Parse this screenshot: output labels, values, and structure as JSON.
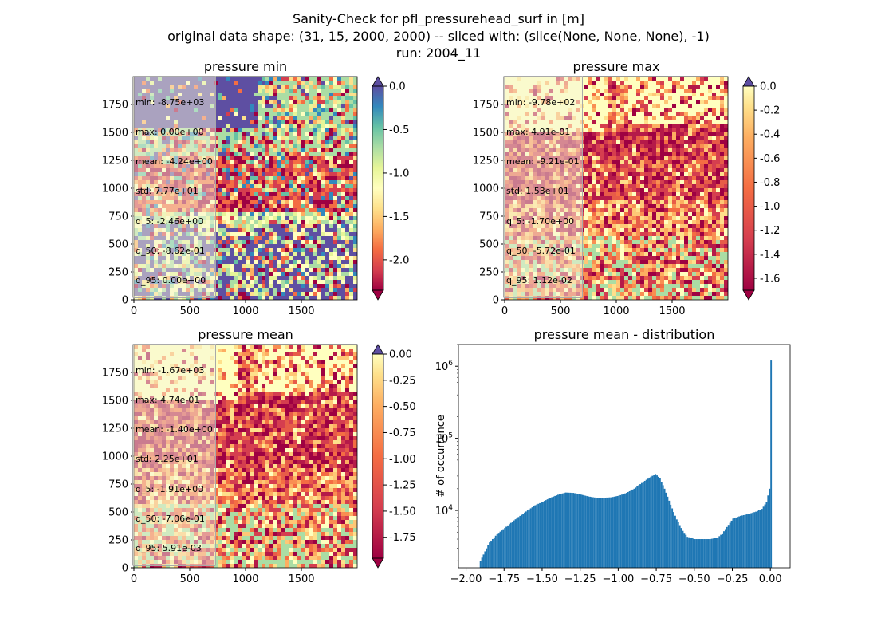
{
  "figure": {
    "title_lines": [
      "Sanity-Check for pfl_pressurehead_surf in [m]",
      "original data shape: (31, 15, 2000, 2000) -- sliced with: (slice(None, None, None), -1)",
      "run: 2004_11"
    ]
  },
  "panels": [
    {
      "id": "min",
      "title": "pressure min",
      "xticks": [
        "0",
        "500",
        "1000",
        "1500"
      ],
      "yticks": [
        "0",
        "250",
        "500",
        "750",
        "1000",
        "1250",
        "1500",
        "1750"
      ],
      "colorbar": {
        "ticks": [
          "0.0",
          "-0.5",
          "-1.0",
          "-1.5",
          "-2.0"
        ],
        "tick_values": [
          0.0,
          -0.5,
          -1.0,
          -1.5,
          -2.0
        ],
        "vmin": -2.35,
        "vmax": 0.0,
        "colormap": "Spectral",
        "extend": "both",
        "over_color": "#5e4fa2",
        "under_color": "#9e0142"
      },
      "stats": [
        "min: -8.75e+03",
        "max: 0.00e+00",
        "mean: -4.24e+00",
        "std: 7.77e+01",
        "q_5: -2.46e+00",
        "q_50: -8.62e-01",
        "q_95: 0.00e+00"
      ]
    },
    {
      "id": "max",
      "title": "pressure max",
      "xticks": [
        "0",
        "500",
        "1000",
        "1500"
      ],
      "yticks": [
        "0",
        "250",
        "500",
        "750",
        "1000",
        "1250",
        "1500",
        "1750"
      ],
      "colorbar": {
        "ticks": [
          "0.0",
          "-0.2",
          "-0.4",
          "-0.6",
          "-0.8",
          "-1.0",
          "-1.2",
          "-1.4",
          "-1.6"
        ],
        "tick_values": [
          0.0,
          -0.2,
          -0.4,
          -0.6,
          -0.8,
          -1.0,
          -1.2,
          -1.4,
          -1.6
        ],
        "vmin": -1.7,
        "vmax": 0.0,
        "colormap": "Spectral (lower half)",
        "extend": "both",
        "over_color": "#5e4fa2",
        "under_color": "#9e0142"
      },
      "stats": [
        "min: -9.78e+02",
        "max: 4.91e-01",
        "mean: -9.21e-01",
        "std: 1.53e+01",
        "q_5: -1.70e+00",
        "q_50: -5.72e-01",
        "q_95: 1.12e-02"
      ]
    },
    {
      "id": "mean",
      "title": "pressure mean",
      "xticks": [
        "0",
        "500",
        "1000",
        "1500"
      ],
      "yticks": [
        "0",
        "250",
        "500",
        "750",
        "1000",
        "1250",
        "1500",
        "1750"
      ],
      "colorbar": {
        "ticks": [
          "0.00",
          "-0.25",
          "-0.50",
          "-0.75",
          "-1.00",
          "-1.25",
          "-1.50",
          "-1.75"
        ],
        "tick_values": [
          0.0,
          -0.25,
          -0.5,
          -0.75,
          -1.0,
          -1.25,
          -1.5,
          -1.75
        ],
        "vmin": -1.95,
        "vmax": 0.0,
        "colormap": "Spectral (lower half)",
        "extend": "both",
        "over_color": "#5e4fa2",
        "under_color": "#9e0142"
      },
      "stats": [
        "min: -1.67e+03",
        "max: 4.74e-01",
        "mean: -1.40e+00",
        "std: 2.25e+01",
        "q_5: -1.91e+00",
        "q_50: -7.06e-01",
        "q_95: 5.91e-03"
      ]
    }
  ],
  "histogram": {
    "title": "pressure mean - distribution",
    "ylabel": "# of occurrence",
    "xticks": [
      "−2.00",
      "−1.75",
      "−1.50",
      "−1.25",
      "−1.00",
      "−0.75",
      "−0.50",
      "−0.25",
      "0.00"
    ],
    "xtick_values": [
      -2.0,
      -1.75,
      -1.5,
      -1.25,
      -1.0,
      -0.75,
      -0.5,
      -0.25,
      0.0
    ],
    "yticks": [
      {
        "base": "10",
        "exp": "4",
        "value": 10000
      },
      {
        "base": "10",
        "exp": "5",
        "value": 100000
      },
      {
        "base": "10",
        "exp": "6",
        "value": 1000000
      }
    ],
    "bar_color": "#1f77b4"
  },
  "chart_data": {
    "type": "bar",
    "title": "pressure mean - distribution",
    "xlabel": "",
    "ylabel": "# of occurrence",
    "xlim": [
      -2.05,
      0.13
    ],
    "ylim": [
      1600,
      2000000
    ],
    "yscale": "log",
    "bin_start": -1.91,
    "bin_width": 0.01,
    "points": [
      [
        -1.91,
        2000
      ],
      [
        -1.88,
        2700
      ],
      [
        -1.85,
        3600
      ],
      [
        -1.8,
        4700
      ],
      [
        -1.75,
        5700
      ],
      [
        -1.7,
        7000
      ],
      [
        -1.65,
        8400
      ],
      [
        -1.6,
        10000
      ],
      [
        -1.55,
        11800
      ],
      [
        -1.5,
        13200
      ],
      [
        -1.45,
        15000
      ],
      [
        -1.4,
        16500
      ],
      [
        -1.35,
        17700
      ],
      [
        -1.3,
        17500
      ],
      [
        -1.25,
        16600
      ],
      [
        -1.2,
        15600
      ],
      [
        -1.15,
        15000
      ],
      [
        -1.1,
        15000
      ],
      [
        -1.05,
        15200
      ],
      [
        -1.0,
        16000
      ],
      [
        -0.95,
        17500
      ],
      [
        -0.9,
        20000
      ],
      [
        -0.85,
        24000
      ],
      [
        -0.8,
        28500
      ],
      [
        -0.76,
        32000
      ],
      [
        -0.73,
        28000
      ],
      [
        -0.7,
        20000
      ],
      [
        -0.66,
        12000
      ],
      [
        -0.62,
        7500
      ],
      [
        -0.58,
        5200
      ],
      [
        -0.55,
        4300
      ],
      [
        -0.5,
        4000
      ],
      [
        -0.4,
        4000
      ],
      [
        -0.35,
        4200
      ],
      [
        -0.32,
        4800
      ],
      [
        -0.28,
        6300
      ],
      [
        -0.25,
        7700
      ],
      [
        -0.2,
        8400
      ],
      [
        -0.15,
        8900
      ],
      [
        -0.1,
        9600
      ],
      [
        -0.06,
        10500
      ],
      [
        -0.03,
        13000
      ],
      [
        -0.01,
        20000
      ],
      [
        0.0,
        1200000
      ]
    ]
  }
}
